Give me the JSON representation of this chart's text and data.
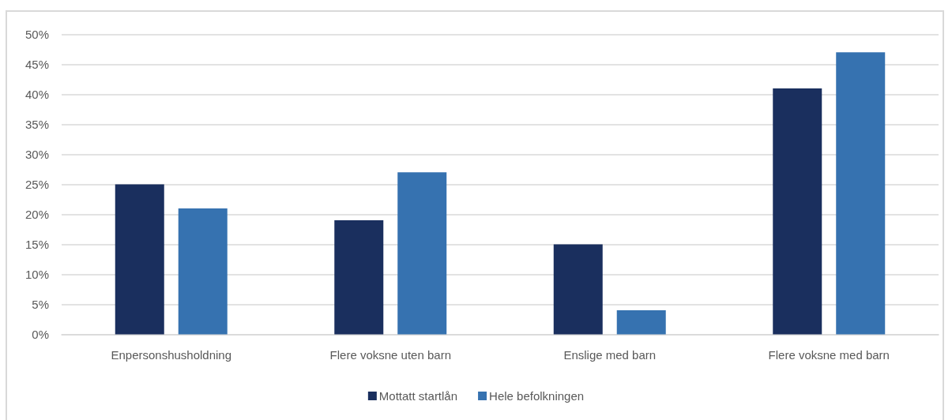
{
  "chart_data": {
    "type": "bar",
    "categories": [
      "Enpersonshusholdning",
      "Flere voksne uten barn",
      "Enslige med barn",
      "Flere voksne med barn"
    ],
    "series": [
      {
        "name": "Mottatt startlån",
        "color": "#1a2f5e",
        "values": [
          25,
          19,
          15,
          41
        ]
      },
      {
        "name": "Hele befolkningen",
        "color": "#3672b0",
        "values": [
          21,
          27,
          4,
          47
        ]
      }
    ],
    "ylim": [
      0,
      50
    ],
    "yticks": [
      {
        "value": 0,
        "label": "0%"
      },
      {
        "value": 5,
        "label": "5%"
      },
      {
        "value": 10,
        "label": "10%"
      },
      {
        "value": 15,
        "label": "15%"
      },
      {
        "value": 20,
        "label": "20%"
      },
      {
        "value": 25,
        "label": "25%"
      },
      {
        "value": 30,
        "label": "30%"
      },
      {
        "value": 35,
        "label": "35%"
      },
      {
        "value": 40,
        "label": "40%"
      },
      {
        "value": 45,
        "label": "45%"
      },
      {
        "value": 50,
        "label": "50%"
      }
    ],
    "grid": "y",
    "legend": "bottom"
  }
}
